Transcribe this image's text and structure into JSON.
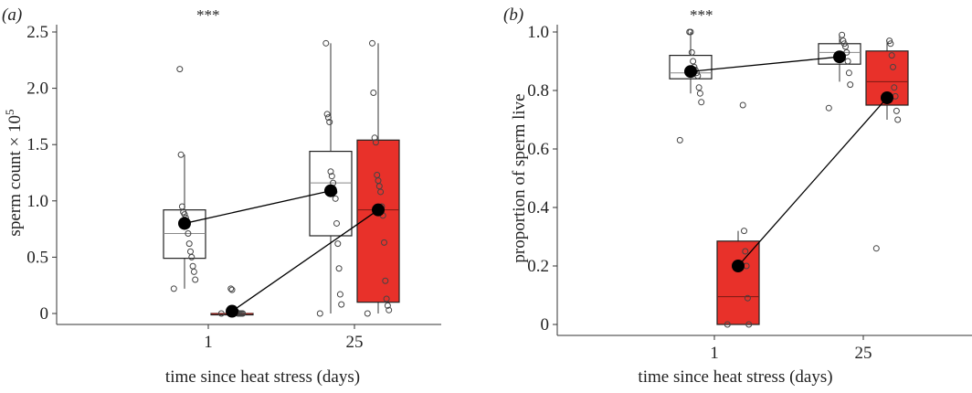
{
  "colors": {
    "control_fill": "#ffffff",
    "heat_fill": "#e8312a",
    "mean_marker": "#000000",
    "line": "#000000",
    "jitter_point_stroke": "#444444"
  },
  "chart_data": [
    {
      "type": "box",
      "panel_label": "(a)",
      "significance": "***",
      "xlabel": "time since heat stress (days)",
      "ylabel": "sperm count × 10",
      "ylabel_superscript": "5",
      "ylim": [
        0,
        2.5
      ],
      "yticks": [
        "0",
        "0.5",
        "1.0",
        "1.5",
        "2.0",
        "2.5"
      ],
      "ytick_values": [
        0,
        0.5,
        1.0,
        1.5,
        2.0,
        2.5
      ],
      "categories": [
        "1",
        "25"
      ],
      "grid": false,
      "series": [
        {
          "boxes": [
            {
              "q1": 0.49,
              "median": 0.71,
              "q3": 0.92,
              "whisker_low": 0.22,
              "whisker_high": 1.41,
              "mean": 0.8,
              "points": [
                0.22,
                0.3,
                0.37,
                0.42,
                0.5,
                0.55,
                0.62,
                0.71,
                0.78,
                0.85,
                0.88,
                0.9,
                0.95,
                1.41,
                2.17
              ]
            },
            {
              "q1": 0.69,
              "median": 1.16,
              "q3": 1.44,
              "whisker_low": 0.0,
              "whisker_high": 2.4,
              "mean": 1.09,
              "points": [
                0.0,
                0.08,
                0.17,
                0.4,
                0.62,
                0.8,
                1.02,
                1.08,
                1.16,
                1.22,
                1.26,
                1.7,
                1.74,
                1.77,
                2.4
              ]
            }
          ]
        },
        {
          "boxes": [
            {
              "q1": 0.0,
              "median": 0.0,
              "q3": 0.0,
              "whisker_low": 0.0,
              "whisker_high": 0.0,
              "mean": 0.02,
              "points": [
                0.0,
                0.0,
                0.0,
                0.0,
                0.0,
                0.0,
                0.01,
                0.02,
                0.03,
                0.04,
                0.21,
                0.22
              ]
            },
            {
              "q1": 0.1,
              "median": 0.92,
              "q3": 1.54,
              "whisker_low": 0.0,
              "whisker_high": 2.4,
              "mean": 0.92,
              "points": [
                0.0,
                0.03,
                0.07,
                0.13,
                0.29,
                0.63,
                0.87,
                0.95,
                1.08,
                1.13,
                1.18,
                1.23,
                1.52,
                1.56,
                1.96,
                2.4
              ]
            }
          ]
        }
      ]
    },
    {
      "type": "box",
      "panel_label": "(b)",
      "significance": "***",
      "xlabel": "time since heat stress (days)",
      "ylabel": "proportion of sperm live",
      "ylim": [
        0,
        1.0
      ],
      "yticks": [
        "0",
        "0.2",
        "0.4",
        "0.6",
        "0.8",
        "1.0"
      ],
      "ytick_values": [
        0,
        0.2,
        0.4,
        0.6,
        0.8,
        1.0
      ],
      "categories": [
        "1",
        "25"
      ],
      "grid": false,
      "series": [
        {
          "boxes": [
            {
              "q1": 0.84,
              "median": 0.86,
              "q3": 0.92,
              "whisker_low": 0.79,
              "whisker_high": 1.0,
              "mean": 0.865,
              "points": [
                0.63,
                0.76,
                0.79,
                0.81,
                0.85,
                0.86,
                0.87,
                0.88,
                0.9,
                0.93,
                1.0,
                1.0
              ]
            },
            {
              "q1": 0.89,
              "median": 0.93,
              "q3": 0.96,
              "whisker_low": 0.83,
              "whisker_high": 0.99,
              "mean": 0.915,
              "points": [
                0.74,
                0.82,
                0.86,
                0.9,
                0.93,
                0.95,
                0.96,
                0.97,
                0.99
              ]
            }
          ]
        },
        {
          "boxes": [
            {
              "q1": 0.0,
              "median": 0.095,
              "q3": 0.285,
              "whisker_low": 0.0,
              "whisker_high": 0.32,
              "mean": 0.2,
              "points": [
                0.0,
                0.0,
                0.09,
                0.2,
                0.25,
                0.32,
                0.75
              ]
            },
            {
              "q1": 0.75,
              "median": 0.83,
              "q3": 0.935,
              "whisker_low": 0.7,
              "whisker_high": 0.97,
              "mean": 0.775,
              "points": [
                0.26,
                0.7,
                0.73,
                0.78,
                0.81,
                0.88,
                0.92,
                0.96,
                0.97
              ]
            }
          ]
        }
      ]
    }
  ]
}
